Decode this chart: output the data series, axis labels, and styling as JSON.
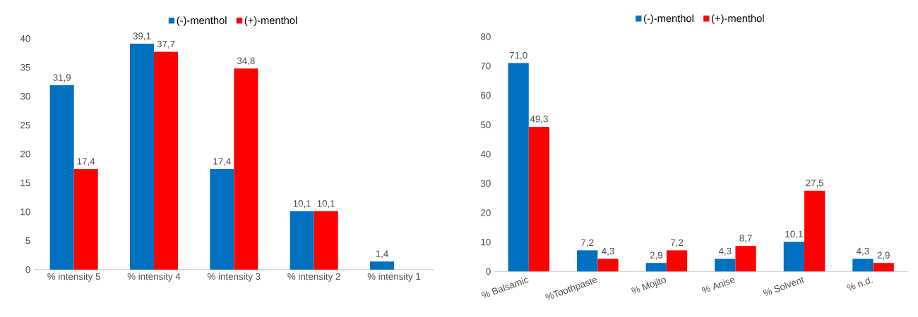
{
  "chart_data": [
    {
      "type": "bar",
      "categories": [
        "% intensity 5",
        "% intensity 4",
        "% intensity 3",
        "% intensity 2",
        "% intensity 1"
      ],
      "ylim": [
        0,
        40
      ],
      "yticks": [
        0,
        5,
        10,
        15,
        20,
        25,
        30,
        35,
        40
      ],
      "legend": "top",
      "series": [
        {
          "name": "(-)-menthol",
          "color": "#0070c0",
          "values": [
            31.9,
            39.1,
            17.4,
            10.1,
            1.4
          ],
          "value_labels": [
            "31,9",
            "39,1",
            "17,4",
            "10,1",
            "1,4"
          ]
        },
        {
          "name": "(+)-menthol",
          "color": "#ff0000",
          "values": [
            17.4,
            37.7,
            34.8,
            10.1,
            null
          ],
          "value_labels": [
            "17,4",
            "37,7",
            "34,8",
            "10,1",
            null
          ]
        }
      ]
    },
    {
      "type": "bar",
      "categories": [
        "% Balsamic",
        "%Toothpaste",
        "% Mojito",
        "% Anise",
        "% Solvent",
        "% n.d."
      ],
      "ylim": [
        0,
        80
      ],
      "yticks": [
        0,
        10,
        20,
        30,
        40,
        50,
        60,
        70,
        80
      ],
      "legend": "top",
      "series": [
        {
          "name": "(-)-menthol",
          "color": "#0070c0",
          "values": [
            71.0,
            7.2,
            2.9,
            4.3,
            10.1,
            4.3
          ],
          "value_labels": [
            "71,0",
            "7,2",
            "2,9",
            "4,3",
            "10,1",
            "4,3"
          ]
        },
        {
          "name": "(+)-menthol",
          "color": "#ff0000",
          "values": [
            49.3,
            4.3,
            7.2,
            8.7,
            27.5,
            2.9
          ],
          "value_labels": [
            "49,3",
            "4,3",
            "7,2",
            "8,7",
            "27,5",
            "2,9"
          ]
        }
      ]
    }
  ]
}
